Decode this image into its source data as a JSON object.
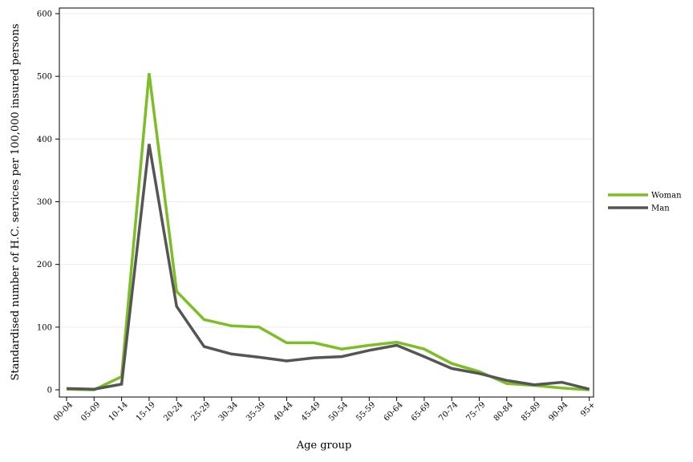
{
  "chart_data": {
    "type": "line",
    "xlabel": "Age group",
    "ylabel": "Standardised number of H.C. services per 100,000 insured persons",
    "categories": [
      "00-04",
      "05-09",
      "10-14",
      "15-19",
      "20-24",
      "25-29",
      "30-34",
      "35-39",
      "40-44",
      "45-49",
      "50-54",
      "55-59",
      "60-64",
      "65-69",
      "70-74",
      "75-79",
      "80-84",
      "85-89",
      "90-94",
      "95+"
    ],
    "ylim": [
      0,
      600
    ],
    "yticks": [
      0,
      100,
      200,
      300,
      400,
      500,
      600
    ],
    "grid": true,
    "legend_position": "right",
    "series": [
      {
        "name": "Woman",
        "color": "#7dbd26",
        "values": [
          1,
          0,
          21,
          505,
          157,
          112,
          102,
          100,
          75,
          75,
          65,
          71,
          76,
          65,
          42,
          29,
          10,
          7,
          3,
          0
        ]
      },
      {
        "name": "Man",
        "color": "#555555",
        "values": [
          2,
          1,
          9,
          392,
          133,
          69,
          57,
          52,
          46,
          51,
          53,
          63,
          71,
          53,
          34,
          26,
          15,
          8,
          12,
          1
        ]
      }
    ]
  }
}
